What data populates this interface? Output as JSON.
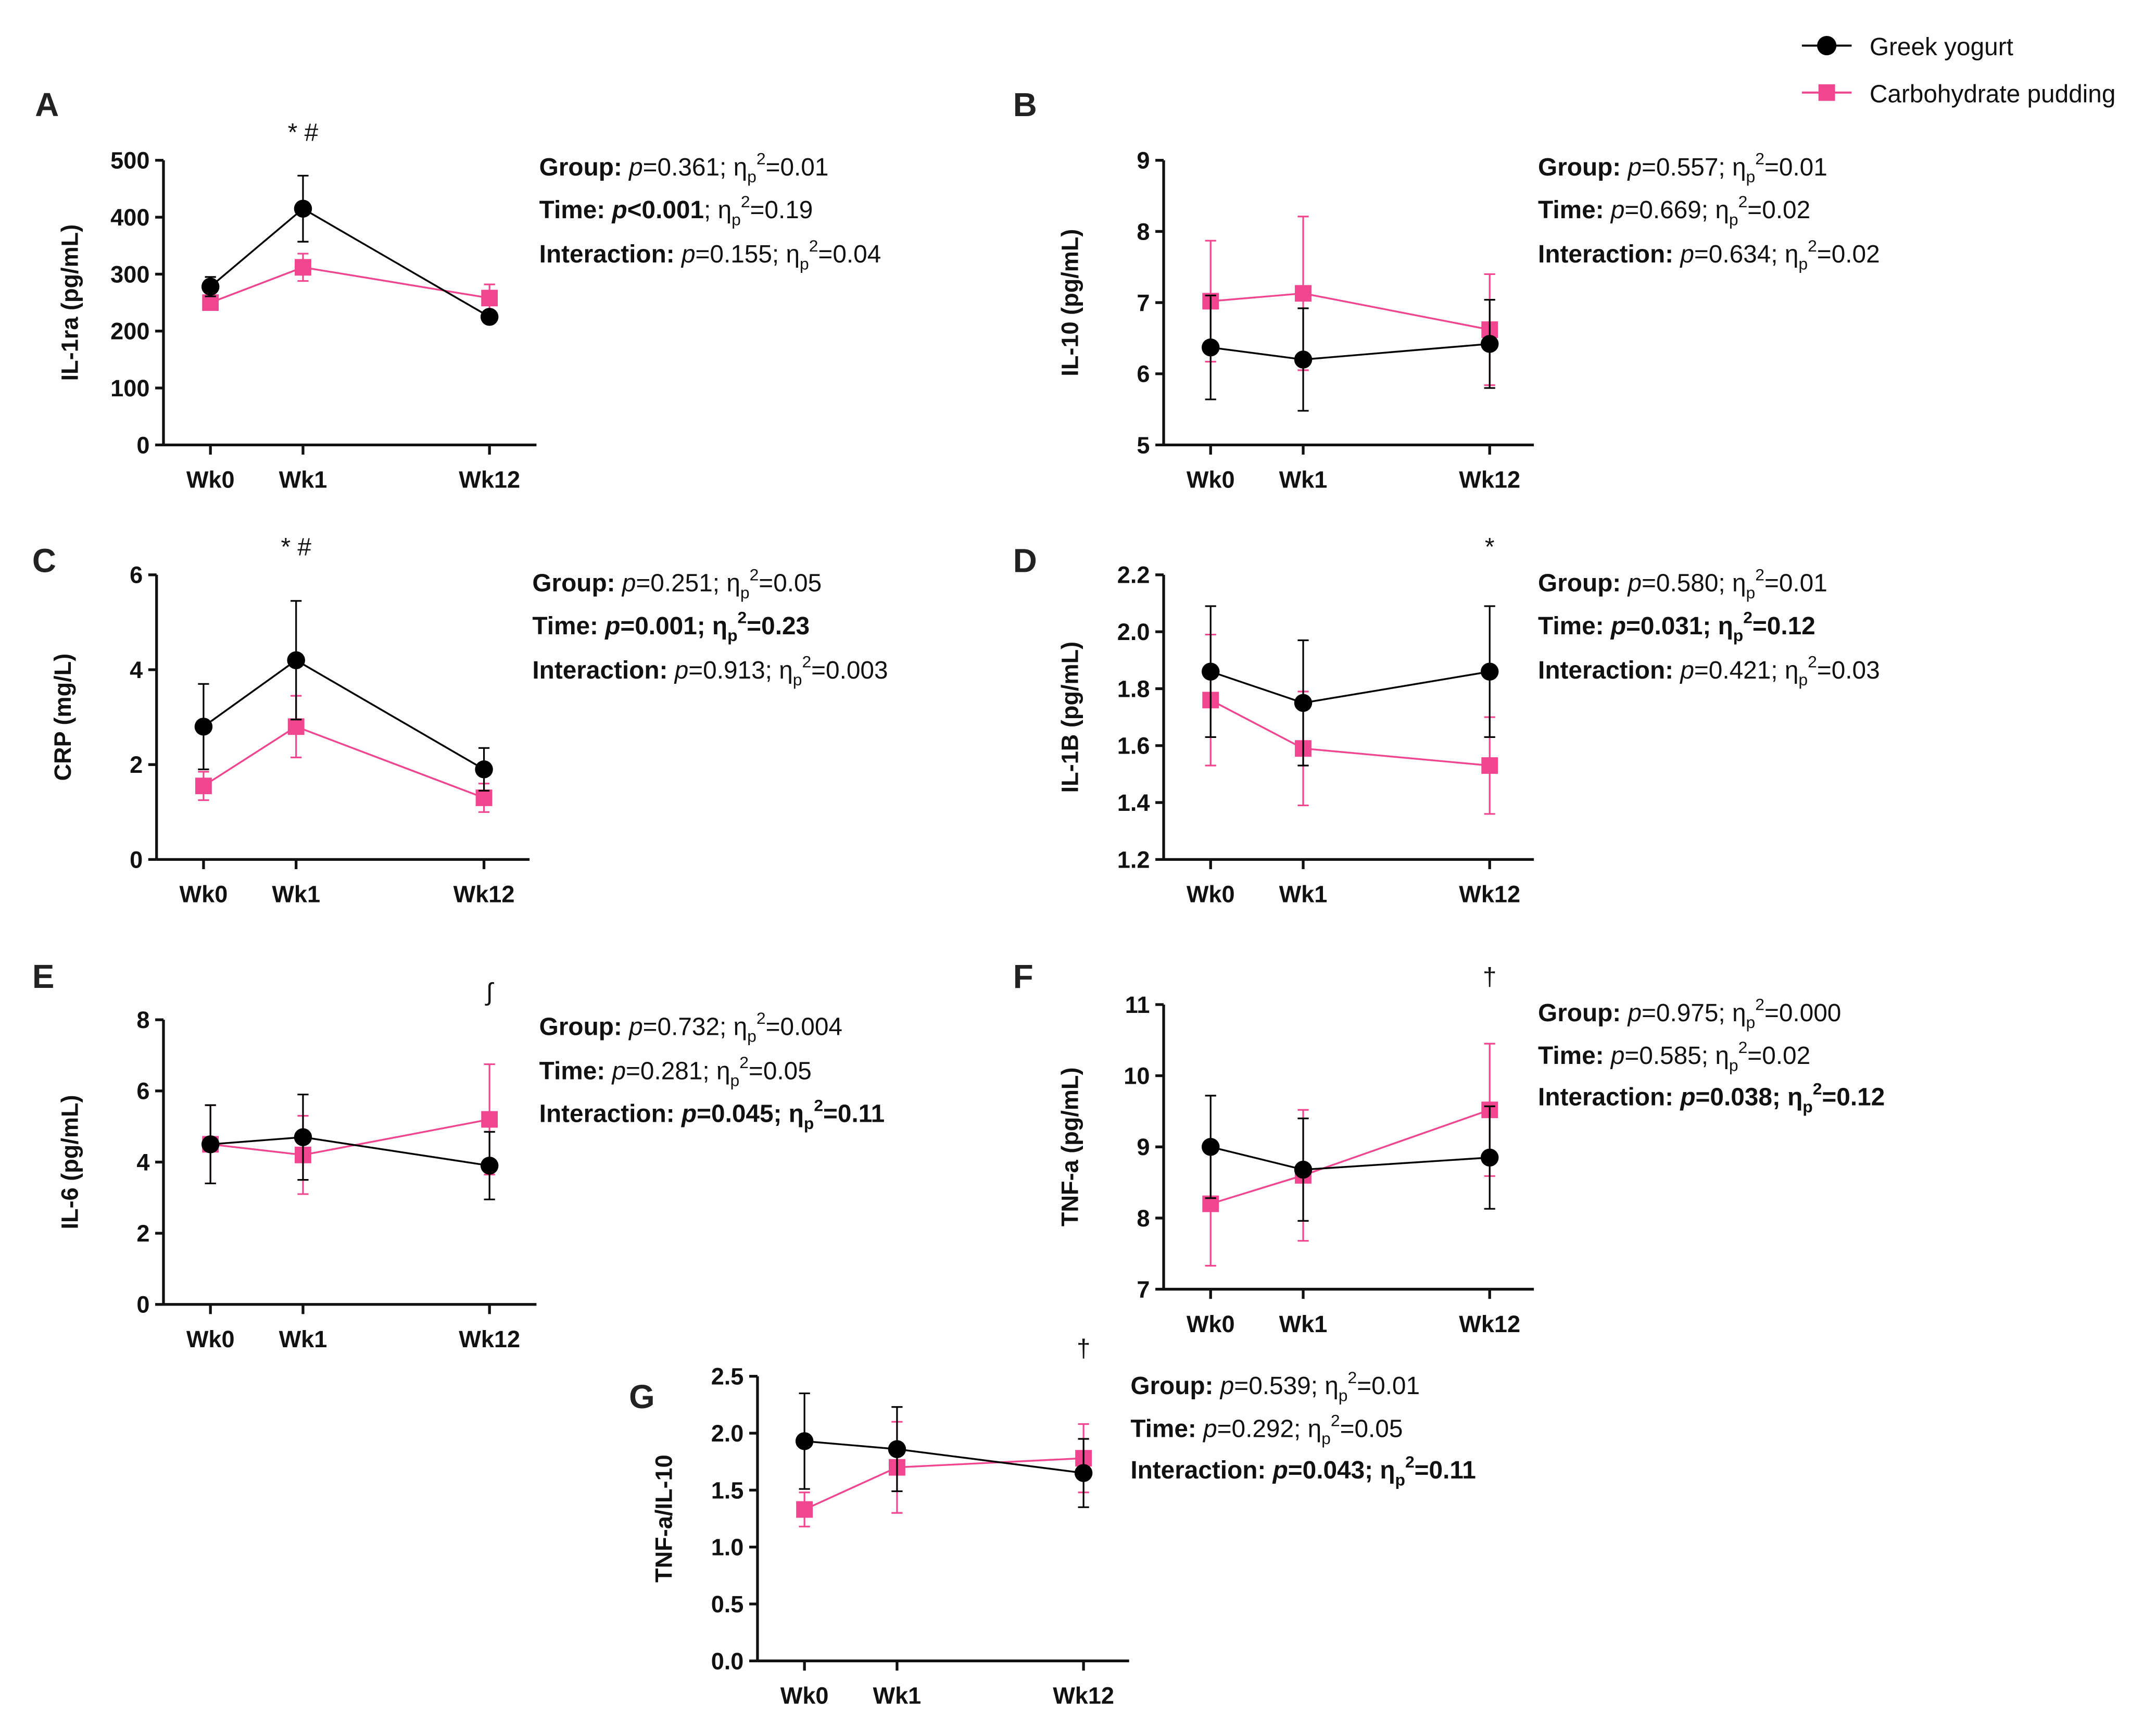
{
  "legend": [
    {
      "name": "Greek yogurt",
      "color": "#000000",
      "marker": "circle"
    },
    {
      "name": "Carbohydrate pudding",
      "color": "#f0458f",
      "marker": "square"
    }
  ],
  "chart_data": [
    {
      "panel": "A",
      "type": "line",
      "ylabel": "IL-1ra (pg/mL)",
      "categories": [
        "Wk0",
        "Wk1",
        "Wk12"
      ],
      "ylim": [
        0,
        500
      ],
      "yticks": [
        "0",
        "100",
        "200",
        "300",
        "400",
        "500"
      ],
      "series": [
        {
          "name": "Greek yogurt",
          "values": [
            278,
            415,
            225
          ],
          "errors": [
            17,
            58,
            10
          ]
        },
        {
          "name": "Carbohydrate pudding",
          "values": [
            250,
            312,
            258
          ],
          "errors": [
            12,
            24,
            24
          ]
        }
      ],
      "annotations": [
        {
          "category": "Wk1",
          "text": "* #"
        }
      ],
      "stats": [
        {
          "label": "Group:",
          "p": "=0.361",
          "eta": "=0.01",
          "bold_p": false,
          "bold_eta": false
        },
        {
          "label": "Time:",
          "p": "<0.001",
          "eta": "=0.19",
          "bold_p": true,
          "bold_eta": false
        },
        {
          "label": "Interaction:",
          "p": "=0.155",
          "eta": "=0.04",
          "bold_p": false,
          "bold_eta": false
        }
      ]
    },
    {
      "panel": "B",
      "type": "line",
      "ylabel": "IL-10 (pg/mL)",
      "categories": [
        "Wk0",
        "Wk1",
        "Wk12"
      ],
      "ylim": [
        5,
        9
      ],
      "yticks": [
        "5",
        "6",
        "7",
        "8",
        "9"
      ],
      "series": [
        {
          "name": "Greek yogurt",
          "values": [
            6.37,
            6.2,
            6.42
          ],
          "errors": [
            0.73,
            0.72,
            0.62
          ]
        },
        {
          "name": "Carbohydrate pudding",
          "values": [
            7.02,
            7.13,
            6.62
          ],
          "errors": [
            0.85,
            1.08,
            0.78
          ]
        }
      ],
      "annotations": [],
      "stats": [
        {
          "label": "Group:",
          "p": "=0.557",
          "eta": "=0.01",
          "bold_p": false,
          "bold_eta": false
        },
        {
          "label": "Time:",
          "p": "=0.669",
          "eta": "=0.02",
          "bold_p": false,
          "bold_eta": false
        },
        {
          "label": "Interaction:",
          "p": "=0.634",
          "eta": "=0.02",
          "bold_p": false,
          "bold_eta": false
        }
      ]
    },
    {
      "panel": "C",
      "type": "line",
      "ylabel": "CRP (mg/L)",
      "categories": [
        "Wk0",
        "Wk1",
        "Wk12"
      ],
      "ylim": [
        0,
        6
      ],
      "yticks": [
        "0",
        "2",
        "4",
        "6"
      ],
      "series": [
        {
          "name": "Greek yogurt",
          "values": [
            2.8,
            4.2,
            1.9
          ],
          "errors": [
            0.9,
            1.25,
            0.45
          ]
        },
        {
          "name": "Carbohydrate pudding",
          "values": [
            1.55,
            2.8,
            1.3
          ],
          "errors": [
            0.3,
            0.65,
            0.3
          ]
        }
      ],
      "annotations": [
        {
          "category": "Wk1",
          "text": "* #"
        }
      ],
      "stats": [
        {
          "label": "Group:",
          "p": "=0.251",
          "eta": "=0.05",
          "bold_p": false,
          "bold_eta": false
        },
        {
          "label": "Time:",
          "p": "=0.001;",
          "eta": "=0.23",
          "bold_p": true,
          "bold_eta": true
        },
        {
          "label": "Interaction:",
          "p": "=0.913",
          "eta": "=0.003",
          "bold_p": false,
          "bold_eta": false
        }
      ]
    },
    {
      "panel": "D",
      "type": "line",
      "ylabel": "IL-1B (pg/mL)",
      "categories": [
        "Wk0",
        "Wk1",
        "Wk12"
      ],
      "ylim": [
        1.2,
        2.2
      ],
      "yticks": [
        "1.2",
        "1.4",
        "1.6",
        "1.8",
        "2.0",
        "2.2"
      ],
      "series": [
        {
          "name": "Greek yogurt",
          "values": [
            1.86,
            1.75,
            1.86
          ],
          "errors": [
            0.23,
            0.22,
            0.23
          ]
        },
        {
          "name": "Carbohydrate pudding",
          "values": [
            1.76,
            1.59,
            1.53
          ],
          "errors": [
            0.23,
            0.2,
            0.17
          ]
        }
      ],
      "annotations": [
        {
          "category": "Wk12",
          "text": "*"
        }
      ],
      "stats": [
        {
          "label": "Group:",
          "p": "=0.580",
          "eta": "=0.01",
          "bold_p": false,
          "bold_eta": false
        },
        {
          "label": "Time:",
          "p": "=0.031;",
          "eta": "=0.12",
          "bold_p": true,
          "bold_eta": true
        },
        {
          "label": "Interaction:",
          "p": "=0.421",
          "eta": "=0.03",
          "bold_p": false,
          "bold_eta": false
        }
      ]
    },
    {
      "panel": "E",
      "type": "line",
      "ylabel": "IL-6 (pg/mL)",
      "categories": [
        "Wk0",
        "Wk1",
        "Wk12"
      ],
      "ylim": [
        0,
        8
      ],
      "yticks": [
        "0",
        "2",
        "4",
        "6",
        "8"
      ],
      "series": [
        {
          "name": "Greek yogurt",
          "values": [
            4.5,
            4.7,
            3.9
          ],
          "errors": [
            1.1,
            1.2,
            0.95
          ]
        },
        {
          "name": "Carbohydrate pudding",
          "values": [
            4.5,
            4.2,
            5.2
          ],
          "errors": [
            1.1,
            1.1,
            1.55
          ]
        }
      ],
      "annotations": [
        {
          "category": "Wk12",
          "text": "∫"
        }
      ],
      "stats": [
        {
          "label": "Group:",
          "p": "=0.732",
          "eta": "=0.004",
          "bold_p": false,
          "bold_eta": false
        },
        {
          "label": "Time:",
          "p": "=0.281",
          "eta": "=0.05",
          "bold_p": false,
          "bold_eta": false
        },
        {
          "label": "Interaction:",
          "p": "=0.045;",
          "eta": "=0.11",
          "bold_p": true,
          "bold_eta": true
        }
      ]
    },
    {
      "panel": "F",
      "type": "line",
      "ylabel": "TNF-a (pg/mL)",
      "categories": [
        "Wk0",
        "Wk1",
        "Wk12"
      ],
      "ylim": [
        7,
        11
      ],
      "yticks": [
        "7",
        "8",
        "9",
        "10",
        "11"
      ],
      "series": [
        {
          "name": "Greek yogurt",
          "values": [
            9.0,
            8.68,
            8.85
          ],
          "errors": [
            0.72,
            0.72,
            0.72
          ]
        },
        {
          "name": "Carbohydrate pudding",
          "values": [
            8.2,
            8.6,
            9.52
          ],
          "errors": [
            0.87,
            0.92,
            0.93
          ]
        }
      ],
      "annotations": [
        {
          "category": "Wk12",
          "text": "†"
        }
      ],
      "stats": [
        {
          "label": "Group:",
          "p": "=0.975",
          "eta": "=0.000",
          "bold_p": false,
          "bold_eta": false
        },
        {
          "label": "Time:",
          "p": "=0.585",
          "eta": "=0.02",
          "bold_p": false,
          "bold_eta": false
        },
        {
          "label": "Interaction:",
          "p": "=0.038;",
          "eta": "=0.12",
          "bold_p": true,
          "bold_eta": true
        }
      ]
    },
    {
      "panel": "G",
      "type": "line",
      "ylabel": "TNF-a/IL-10",
      "categories": [
        "Wk0",
        "Wk1",
        "Wk12"
      ],
      "ylim": [
        0,
        2.5
      ],
      "yticks": [
        "0.0",
        "0.5",
        "1.0",
        "1.5",
        "2.0",
        "2.5"
      ],
      "series": [
        {
          "name": "Greek yogurt",
          "values": [
            1.93,
            1.86,
            1.65
          ],
          "errors": [
            0.42,
            0.37,
            0.3
          ]
        },
        {
          "name": "Carbohydrate pudding",
          "values": [
            1.33,
            1.7,
            1.78
          ],
          "errors": [
            0.15,
            0.4,
            0.3
          ]
        }
      ],
      "annotations": [
        {
          "category": "Wk12",
          "text": "†"
        }
      ],
      "stats": [
        {
          "label": "Group:",
          "p": "=0.539",
          "eta": "=0.01",
          "bold_p": false,
          "bold_eta": false
        },
        {
          "label": "Time:",
          "p": "=0.292",
          "eta": "=0.05",
          "bold_p": false,
          "bold_eta": false
        },
        {
          "label": "Interaction:",
          "p": "=0.043;",
          "eta": "=0.11",
          "bold_p": true,
          "bold_eta": true
        }
      ]
    }
  ]
}
